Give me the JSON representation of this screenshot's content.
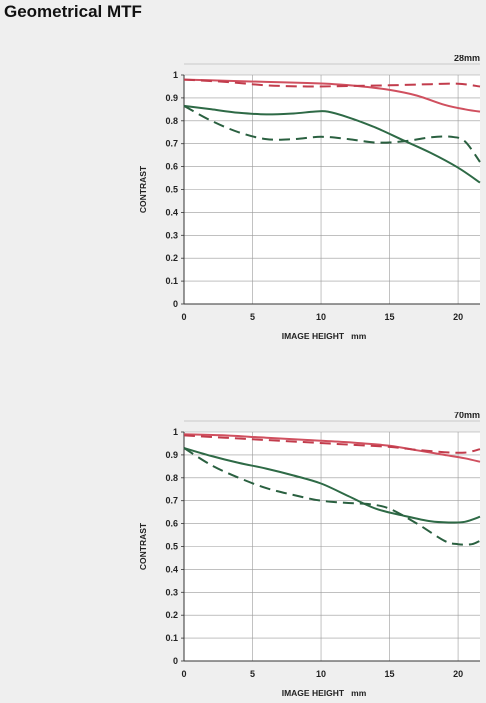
{
  "title": "Geometrical MTF",
  "colors": {
    "sagittal_red": "#d0505f",
    "meridional_red": "#c23c4c",
    "sagittal_green": "#2e6a46",
    "meridional_green": "#2a6040",
    "grid": "#9a9a9a",
    "axis": "#333333"
  },
  "chart_data": [
    {
      "type": "line",
      "focal_label": "28mm",
      "xlabel": "IMAGE HEIGHT   mm",
      "ylabel": "CONTRAST",
      "xlim": [
        0,
        21.6
      ],
      "ylim": [
        0,
        1
      ],
      "x_ticks": [
        0,
        5,
        10,
        15,
        20
      ],
      "y_ticks": [
        0,
        0.1,
        0.2,
        0.3,
        0.4,
        0.5,
        0.6,
        0.7,
        0.8,
        0.9,
        1
      ],
      "y_tick_labels": [
        "0",
        "0.1",
        "0.2",
        "0.3",
        "0.4",
        "0.5",
        "0.6",
        "0.7",
        "0.8",
        "0.9",
        "1"
      ],
      "grid": true,
      "series": [
        {
          "style": "solid",
          "color": "#d0505f",
          "points": [
            [
              0,
              0.98
            ],
            [
              3,
              0.975
            ],
            [
              6,
              0.97
            ],
            [
              9,
              0.965
            ],
            [
              11,
              0.96
            ],
            [
              13,
              0.95
            ],
            [
              15,
              0.935
            ],
            [
              17,
              0.91
            ],
            [
              19,
              0.87
            ],
            [
              20.5,
              0.85
            ],
            [
              21.6,
              0.84
            ]
          ]
        },
        {
          "style": "dashed",
          "color": "#c23c4c",
          "points": [
            [
              0,
              0.98
            ],
            [
              3,
              0.97
            ],
            [
              6,
              0.955
            ],
            [
              9,
              0.95
            ],
            [
              12,
              0.952
            ],
            [
              15,
              0.955
            ],
            [
              18,
              0.96
            ],
            [
              20,
              0.962
            ],
            [
              21.6,
              0.95
            ]
          ]
        },
        {
          "style": "solid",
          "color": "#2e6a46",
          "points": [
            [
              0,
              0.865
            ],
            [
              2,
              0.85
            ],
            [
              4,
              0.835
            ],
            [
              6,
              0.828
            ],
            [
              8,
              0.832
            ],
            [
              9.5,
              0.84
            ],
            [
              10.5,
              0.84
            ],
            [
              12,
              0.815
            ],
            [
              14,
              0.77
            ],
            [
              16,
              0.715
            ],
            [
              18,
              0.66
            ],
            [
              20,
              0.595
            ],
            [
              21.6,
              0.53
            ]
          ]
        },
        {
          "style": "dashed",
          "color": "#2a6040",
          "points": [
            [
              0,
              0.865
            ],
            [
              2,
              0.8
            ],
            [
              4,
              0.75
            ],
            [
              6,
              0.72
            ],
            [
              8,
              0.72
            ],
            [
              10,
              0.73
            ],
            [
              12,
              0.72
            ],
            [
              14,
              0.705
            ],
            [
              16,
              0.71
            ],
            [
              18,
              0.728
            ],
            [
              19.5,
              0.73
            ],
            [
              20.5,
              0.71
            ],
            [
              21.6,
              0.62
            ]
          ]
        }
      ]
    },
    {
      "type": "line",
      "focal_label": "70mm",
      "xlabel": "IMAGE HEIGHT   mm",
      "ylabel": "CONTRAST",
      "xlim": [
        0,
        21.6
      ],
      "ylim": [
        0,
        1
      ],
      "x_ticks": [
        0,
        5,
        10,
        15,
        20
      ],
      "y_ticks": [
        0,
        0.1,
        0.2,
        0.3,
        0.4,
        0.5,
        0.6,
        0.7,
        0.8,
        0.9,
        1
      ],
      "y_tick_labels": [
        "0",
        "0.1",
        "0.2",
        "0.3",
        "0.4",
        "0.5",
        "0.6",
        "0.7",
        "0.8",
        "0.9",
        "1"
      ],
      "grid": true,
      "series": [
        {
          "style": "solid",
          "color": "#d0505f",
          "points": [
            [
              0,
              0.99
            ],
            [
              3,
              0.985
            ],
            [
              6,
              0.975
            ],
            [
              9,
              0.965
            ],
            [
              12,
              0.955
            ],
            [
              15,
              0.94
            ],
            [
              17,
              0.92
            ],
            [
              19,
              0.9
            ],
            [
              20.5,
              0.885
            ],
            [
              21.6,
              0.87
            ]
          ]
        },
        {
          "style": "dashed",
          "color": "#c23c4c",
          "points": [
            [
              0,
              0.985
            ],
            [
              3,
              0.975
            ],
            [
              6,
              0.965
            ],
            [
              9,
              0.955
            ],
            [
              12,
              0.945
            ],
            [
              15,
              0.935
            ],
            [
              17,
              0.922
            ],
            [
              19,
              0.912
            ],
            [
              20.5,
              0.91
            ],
            [
              21.6,
              0.925
            ]
          ]
        },
        {
          "style": "solid",
          "color": "#2e6a46",
          "points": [
            [
              0,
              0.93
            ],
            [
              2,
              0.895
            ],
            [
              4,
              0.865
            ],
            [
              6,
              0.84
            ],
            [
              8,
              0.81
            ],
            [
              10,
              0.775
            ],
            [
              12,
              0.72
            ],
            [
              14,
              0.665
            ],
            [
              16,
              0.635
            ],
            [
              18,
              0.61
            ],
            [
              19.5,
              0.605
            ],
            [
              20.5,
              0.608
            ],
            [
              21.6,
              0.63
            ]
          ]
        },
        {
          "style": "dashed",
          "color": "#2a6040",
          "points": [
            [
              0,
              0.93
            ],
            [
              2,
              0.855
            ],
            [
              4,
              0.8
            ],
            [
              6,
              0.755
            ],
            [
              8,
              0.725
            ],
            [
              10,
              0.7
            ],
            [
              12,
              0.69
            ],
            [
              13.5,
              0.685
            ],
            [
              15,
              0.665
            ],
            [
              17,
              0.6
            ],
            [
              19,
              0.525
            ],
            [
              20,
              0.51
            ],
            [
              21,
              0.51
            ],
            [
              21.6,
              0.525
            ]
          ]
        }
      ]
    }
  ]
}
